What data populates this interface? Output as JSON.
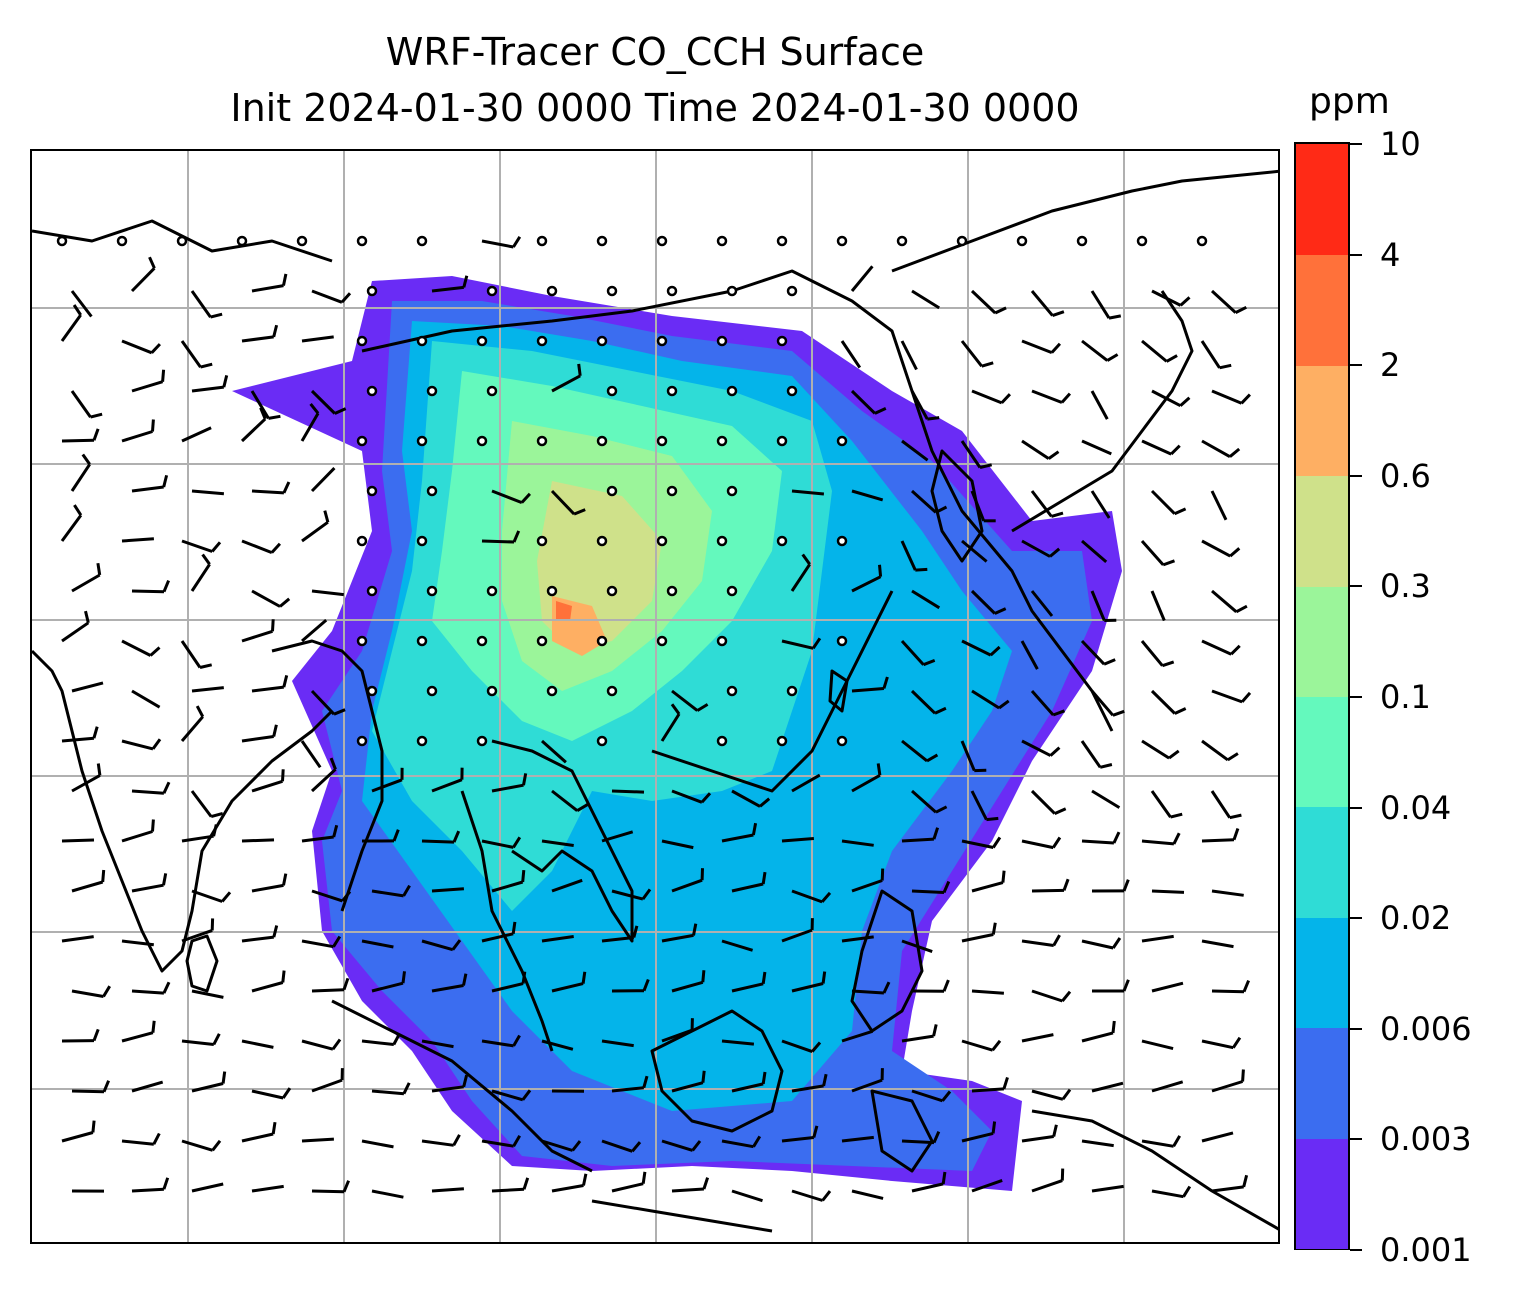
{
  "title": {
    "line1": "WRF-Tracer CO_CCH Surface",
    "line2": "Init 2024-01-30 0000 Time 2024-01-30 0000"
  },
  "colorbar": {
    "units": "ppm",
    "ticks": [
      "0.001",
      "0.003",
      "0.006",
      "0.02",
      "0.04",
      "0.1",
      "0.3",
      "0.6",
      "2",
      "4",
      "10"
    ],
    "colors": [
      "#6a2cf5",
      "#3b6df0",
      "#04b4ea",
      "#2fdcd6",
      "#64f9bd",
      "#9bf59a",
      "#cfe18a",
      "#feaf63",
      "#ff713a",
      "#ff2a16"
    ]
  },
  "map": {
    "gridlines": true,
    "coastline_color": "#000000",
    "grid_color": "#b0b0b0",
    "wind_symbols": "barbs and calm circles",
    "field": "CO_CCH surface concentration"
  }
}
